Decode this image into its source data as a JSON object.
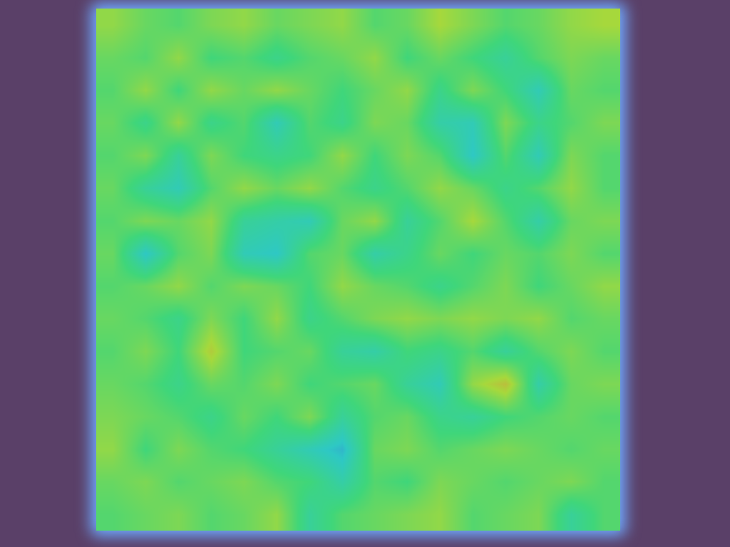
{
  "chart_data": {
    "type": "heatmap",
    "tick_labels": false,
    "xlim": [
      -0.5,
      15.5
    ],
    "ylim": [
      15.5,
      -0.5
    ],
    "zlim": [
      0,
      100
    ],
    "cells": [
      [
        70,
        60,
        55,
        65,
        70,
        60,
        65,
        70,
        55,
        60,
        75,
        65,
        55,
        60,
        70,
        75
      ],
      [
        60,
        55,
        70,
        50,
        55,
        45,
        55,
        60,
        70,
        50,
        60,
        50,
        40,
        55,
        65,
        60
      ],
      [
        55,
        70,
        50,
        70,
        60,
        70,
        60,
        50,
        60,
        70,
        45,
        65,
        50,
        30,
        60,
        55
      ],
      [
        60,
        45,
        70,
        45,
        55,
        30,
        55,
        45,
        65,
        60,
        35,
        30,
        65,
        45,
        55,
        65
      ],
      [
        55,
        65,
        40,
        65,
        50,
        45,
        50,
        70,
        50,
        65,
        55,
        25,
        55,
        30,
        65,
        55
      ],
      [
        60,
        40,
        30,
        55,
        70,
        60,
        70,
        55,
        45,
        55,
        70,
        60,
        45,
        55,
        70,
        55
      ],
      [
        55,
        65,
        60,
        70,
        40,
        35,
        30,
        60,
        70,
        40,
        55,
        75,
        55,
        35,
        60,
        65
      ],
      [
        60,
        25,
        55,
        65,
        30,
        25,
        55,
        60,
        35,
        45,
        60,
        50,
        60,
        55,
        65,
        55
      ],
      [
        55,
        60,
        70,
        55,
        65,
        60,
        50,
        70,
        60,
        55,
        45,
        55,
        65,
        50,
        60,
        70
      ],
      [
        60,
        55,
        45,
        65,
        50,
        70,
        45,
        55,
        65,
        70,
        65,
        70,
        65,
        70,
        55,
        60
      ],
      [
        55,
        65,
        50,
        80,
        50,
        55,
        60,
        40,
        35,
        50,
        45,
        55,
        40,
        55,
        65,
        55
      ],
      [
        60,
        55,
        45,
        60,
        55,
        65,
        50,
        55,
        60,
        40,
        30,
        70,
        85,
        35,
        60,
        65
      ],
      [
        65,
        60,
        55,
        45,
        60,
        50,
        65,
        40,
        55,
        60,
        45,
        40,
        50,
        55,
        60,
        55
      ],
      [
        70,
        50,
        65,
        55,
        50,
        40,
        30,
        20,
        60,
        65,
        55,
        60,
        65,
        60,
        55,
        60
      ],
      [
        60,
        65,
        55,
        60,
        65,
        55,
        50,
        35,
        55,
        50,
        65,
        60,
        55,
        60,
        65,
        55
      ],
      [
        55,
        60,
        65,
        55,
        60,
        70,
        40,
        55,
        60,
        65,
        70,
        55,
        60,
        65,
        40,
        55
      ]
    ]
  }
}
